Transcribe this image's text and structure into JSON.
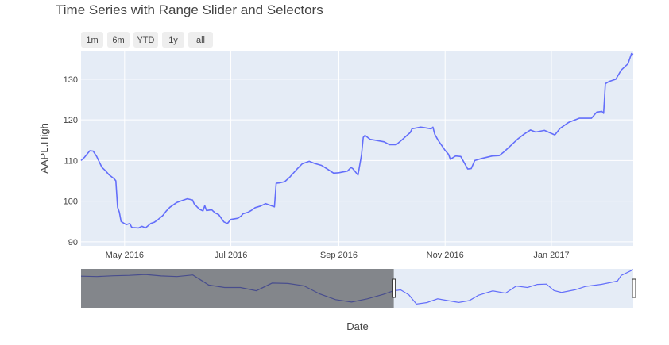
{
  "chart_data": {
    "type": "line",
    "title": "Time Series with Range Slider and Selectors",
    "xlabel": "Date",
    "ylabel": "AAPL.High",
    "xrange": [
      "2016-04-06",
      "2017-02-17"
    ],
    "ylim": [
      89,
      137
    ],
    "yticks": [
      90,
      100,
      110,
      120,
      130
    ],
    "xticks": [
      {
        "date": "2016-05-01",
        "label": "May 2016"
      },
      {
        "date": "2016-07-01",
        "label": "Jul 2016"
      },
      {
        "date": "2016-09-01",
        "label": "Sep 2016"
      },
      {
        "date": "2016-11-01",
        "label": "Nov 2016"
      },
      {
        "date": "2017-01-01",
        "label": "Jan 2017"
      }
    ],
    "range_selector": [
      "1m",
      "6m",
      "YTD",
      "1y",
      "all"
    ],
    "range_slider": {
      "full_range": [
        "2015-02-17",
        "2017-02-17"
      ],
      "selected_range": [
        "2016-04-06",
        "2017-02-17"
      ],
      "ylim": [
        89,
        137
      ]
    },
    "line_color": "#636efa",
    "grid": true,
    "series": [
      {
        "x": [
          "2016-04-06",
          "2016-04-08",
          "2016-04-11",
          "2016-04-13",
          "2016-04-15",
          "2016-04-18",
          "2016-04-20",
          "2016-04-22",
          "2016-04-25",
          "2016-04-26",
          "2016-04-27",
          "2016-04-28",
          "2016-04-29",
          "2016-05-02",
          "2016-05-04",
          "2016-05-05",
          "2016-05-06",
          "2016-05-09",
          "2016-05-11",
          "2016-05-13",
          "2016-05-16",
          "2016-05-18",
          "2016-05-20",
          "2016-05-23",
          "2016-05-25",
          "2016-05-27",
          "2016-05-31",
          "2016-06-02",
          "2016-06-06",
          "2016-06-08",
          "2016-06-09",
          "2016-06-10",
          "2016-06-13",
          "2016-06-15",
          "2016-06-16",
          "2016-06-17",
          "2016-06-20",
          "2016-06-22",
          "2016-06-24",
          "2016-06-27",
          "2016-06-29",
          "2016-07-01",
          "2016-07-05",
          "2016-07-07",
          "2016-07-08",
          "2016-07-11",
          "2016-07-13",
          "2016-07-15",
          "2016-07-18",
          "2016-07-21",
          "2016-07-26",
          "2016-07-27",
          "2016-07-29",
          "2016-08-01",
          "2016-08-04",
          "2016-08-08",
          "2016-08-11",
          "2016-08-15",
          "2016-08-18",
          "2016-08-22",
          "2016-08-25",
          "2016-08-29",
          "2016-09-01",
          "2016-09-06",
          "2016-09-08",
          "2016-09-09",
          "2016-09-12",
          "2016-09-14",
          "2016-09-15",
          "2016-09-16",
          "2016-09-19",
          "2016-09-22",
          "2016-09-27",
          "2016-09-30",
          "2016-10-04",
          "2016-10-07",
          "2016-10-12",
          "2016-10-13",
          "2016-10-18",
          "2016-10-20",
          "2016-10-24",
          "2016-10-25",
          "2016-10-26",
          "2016-10-28",
          "2016-11-01",
          "2016-11-03",
          "2016-11-04",
          "2016-11-07",
          "2016-11-10",
          "2016-11-14",
          "2016-11-16",
          "2016-11-18",
          "2016-11-22",
          "2016-11-28",
          "2016-12-02",
          "2016-12-05",
          "2016-12-07",
          "2016-12-09",
          "2016-12-13",
          "2016-12-16",
          "2016-12-20",
          "2016-12-23",
          "2016-12-28",
          "2017-01-03",
          "2017-01-06",
          "2017-01-11",
          "2017-01-17",
          "2017-01-20",
          "2017-01-24",
          "2017-01-27",
          "2017-01-30",
          "2017-01-31",
          "2017-02-01",
          "2017-02-03",
          "2017-02-07",
          "2017-02-10",
          "2017-02-14",
          "2017-02-16",
          "2017-02-17"
        ],
        "y": [
          110.0,
          110.8,
          112.4,
          112.3,
          111.0,
          108.3,
          107.5,
          106.5,
          105.5,
          105.0,
          98.5,
          97.3,
          95.0,
          94.2,
          94.5,
          93.6,
          93.5,
          93.4,
          93.8,
          93.4,
          94.5,
          94.8,
          95.4,
          96.5,
          97.6,
          98.5,
          99.7,
          100.0,
          100.6,
          100.4,
          100.3,
          99.3,
          98.0,
          97.6,
          98.9,
          97.7,
          97.9,
          97.1,
          96.7,
          94.9,
          94.5,
          95.5,
          95.8,
          96.4,
          96.9,
          97.3,
          97.8,
          98.4,
          98.8,
          99.4,
          98.6,
          104.4,
          104.5,
          104.8,
          106.0,
          107.9,
          109.2,
          109.8,
          109.3,
          108.8,
          108.0,
          106.9,
          107.0,
          107.4,
          108.3,
          108.0,
          106.4,
          111.4,
          115.7,
          116.2,
          115.2,
          115.0,
          114.6,
          113.9,
          113.9,
          115.0,
          116.9,
          117.8,
          118.2,
          118.1,
          117.8,
          118.2,
          116.5,
          115.0,
          112.5,
          111.5,
          110.3,
          111.1,
          111.0,
          107.9,
          108.0,
          110.0,
          110.5,
          111.1,
          111.2,
          112.2,
          113.0,
          113.8,
          115.4,
          116.4,
          117.5,
          117.0,
          117.4,
          116.3,
          117.9,
          119.4,
          120.4,
          120.4,
          120.4,
          121.9,
          122.1,
          121.6,
          128.9,
          129.4,
          130.0,
          132.2,
          133.8,
          136.3,
          136.1
        ]
      }
    ],
    "slider_series": [
      {
        "x": [
          "2015-02-17",
          "2015-03-10",
          "2015-04-01",
          "2015-04-22",
          "2015-05-13",
          "2015-06-03",
          "2015-06-24",
          "2015-07-15",
          "2015-08-05",
          "2015-08-26",
          "2015-09-16",
          "2015-10-07",
          "2015-10-28",
          "2015-11-18",
          "2015-12-09",
          "2015-12-30",
          "2016-01-20",
          "2016-02-10",
          "2016-03-02",
          "2016-03-23",
          "2016-04-06",
          "2016-04-15",
          "2016-04-26",
          "2016-05-06",
          "2016-05-20",
          "2016-06-03",
          "2016-06-17",
          "2016-07-01",
          "2016-07-15",
          "2016-07-27",
          "2016-08-15",
          "2016-09-01",
          "2016-09-15",
          "2016-09-30",
          "2016-10-13",
          "2016-10-25",
          "2016-11-04",
          "2016-11-14",
          "2016-12-02",
          "2016-12-16",
          "2017-01-06",
          "2017-01-27",
          "2017-02-01",
          "2017-02-17"
        ],
        "y": [
          128,
          127.5,
          128.5,
          129,
          130,
          128.3,
          127.5,
          129.5,
          117,
          114,
          114,
          110,
          119.5,
          119,
          116,
          106,
          99,
          96,
          100,
          105.5,
          110,
          111,
          105,
          93.5,
          95.4,
          100,
          97.7,
          95.5,
          97.8,
          104.4,
          109.8,
          107,
          115.7,
          114,
          117.8,
          118.2,
          110.3,
          107.9,
          111.1,
          115.4,
          117.9,
          121.9,
          128.9,
          136.1
        ]
      }
    ]
  }
}
